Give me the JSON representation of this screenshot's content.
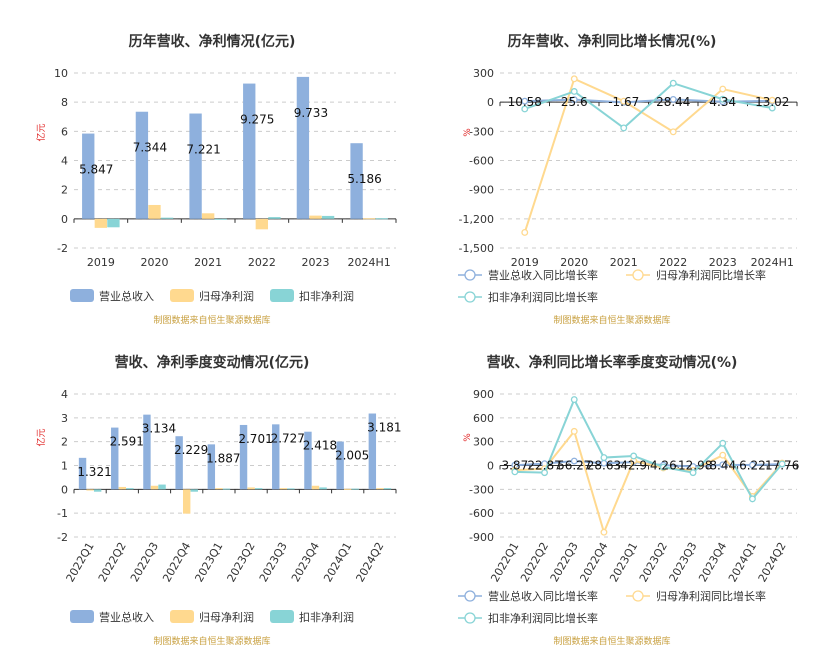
{
  "chart_data": [
    {
      "type": "bar",
      "title": "历年营收、净利情况(亿元)",
      "unit": "亿元",
      "categories": [
        "2019",
        "2020",
        "2021",
        "2022",
        "2023",
        "2024H1"
      ],
      "ylim": [
        -2,
        10
      ],
      "yticks": [
        -2,
        0,
        2,
        4,
        6,
        8,
        10
      ],
      "grid": true,
      "legend": "bottom",
      "series": [
        {
          "name": "营业总收入",
          "color": "#8eb0dd",
          "values": [
            5.847,
            7.344,
            7.221,
            9.275,
            9.733,
            5.186
          ]
        },
        {
          "name": "归母净利润",
          "color": "#ffd98f",
          "values": [
            -0.62,
            0.95,
            0.38,
            -0.72,
            0.22,
            0.04
          ]
        },
        {
          "name": "扣非净利润",
          "color": "#88d4d6",
          "values": [
            -0.58,
            0.08,
            -0.05,
            0.12,
            0.2,
            0.04
          ]
        }
      ],
      "data_labels": [
        "5.847",
        "7.344",
        "7.221",
        "9.275",
        "9.733",
        "5.186"
      ],
      "source": "制图数据来自恒生聚源数据库"
    },
    {
      "type": "line",
      "title": "历年营收、净利同比增长情况(%)",
      "unit": "%",
      "categories": [
        "2019",
        "2020",
        "2021",
        "2022",
        "2023",
        "2024H1"
      ],
      "ylim": [
        -1500,
        300
      ],
      "yticks": [
        "300",
        "0",
        "-300",
        "-600",
        "-900",
        "-1,200",
        "-1,500"
      ],
      "grid": true,
      "legend": "bottom",
      "series": [
        {
          "name": "营业总收入同比增长率",
          "color": "#8eb0dd",
          "values": [
            10.58,
            25.6,
            -1.67,
            28.44,
            4.34,
            13.02
          ]
        },
        {
          "name": "归母净利润同比增长率",
          "color": "#ffd98f",
          "values": [
            -1340,
            240,
            10,
            -305,
            135,
            20
          ]
        },
        {
          "name": "扣非净利润同比增长率",
          "color": "#88d4d6",
          "values": [
            -70,
            110,
            -265,
            195,
            30,
            -60
          ]
        }
      ],
      "data_labels": [
        "10.58",
        "25.6",
        "-1.67",
        "28.44",
        "4.34",
        "13.02"
      ],
      "source": "制图数据来自恒生聚源数据库"
    },
    {
      "type": "bar",
      "title": "营收、净利季度变动情况(亿元)",
      "unit": "亿元",
      "categories": [
        "2022Q1",
        "2022Q2",
        "2022Q3",
        "2022Q4",
        "2023Q1",
        "2023Q2",
        "2023Q3",
        "2023Q4",
        "2024Q1",
        "2024Q2"
      ],
      "ylim": [
        -2,
        4
      ],
      "yticks": [
        -2,
        -1,
        0,
        1,
        2,
        3,
        4
      ],
      "grid": true,
      "legend": "bottom",
      "series": [
        {
          "name": "营业总收入",
          "color": "#8eb0dd",
          "values": [
            1.321,
            2.591,
            3.134,
            2.229,
            1.887,
            2.701,
            2.727,
            2.418,
            2.005,
            3.181
          ]
        },
        {
          "name": "归母净利润",
          "color": "#ffd98f",
          "values": [
            -0.05,
            0.1,
            0.15,
            -1.02,
            0.05,
            0.08,
            0.05,
            0.15,
            0.02,
            0.05
          ]
        },
        {
          "name": "扣非净利润",
          "color": "#88d4d6",
          "values": [
            -0.1,
            0.05,
            0.2,
            -0.1,
            0.03,
            0.05,
            0.04,
            0.08,
            0.03,
            0.05
          ]
        }
      ],
      "data_labels": [
        "1.321",
        "2.591",
        "3.134",
        "2.229",
        "1.887",
        "2.701",
        "2.727",
        "2.418",
        "2.005",
        "3.181"
      ],
      "source": "制图数据来自恒生聚源数据库"
    },
    {
      "type": "line",
      "title": "营收、净利同比增长率季度变动情况(%)",
      "unit": "%",
      "categories": [
        "2022Q1",
        "2022Q2",
        "2022Q3",
        "2022Q4",
        "2023Q1",
        "2023Q2",
        "2023Q3",
        "2023Q4",
        "2024Q1",
        "2024Q2"
      ],
      "ylim": [
        -900,
        900
      ],
      "yticks": [
        "900",
        "600",
        "300",
        "0",
        "-300",
        "-600",
        "-900"
      ],
      "grid": true,
      "legend": "bottom",
      "series": [
        {
          "name": "营业总收入同比增长率",
          "color": "#8eb0dd",
          "values": [
            3.87,
            22.87,
            56.27,
            28.63,
            42.9,
            4.26,
            -12.98,
            8.44,
            6.22,
            17.76
          ]
        },
        {
          "name": "归母净利润同比增长率",
          "color": "#ffd98f",
          "values": [
            -60,
            -40,
            430,
            -840,
            60,
            -30,
            -60,
            130,
            -390,
            30
          ]
        },
        {
          "name": "扣非净利润同比增长率",
          "color": "#88d4d6",
          "values": [
            -80,
            -90,
            830,
            100,
            120,
            -20,
            -90,
            280,
            -420,
            20
          ]
        }
      ],
      "data_labels": [
        "3.87",
        "22.87",
        "56.27",
        "28.63",
        "42.9",
        "4.26",
        "-12.98",
        "8.44",
        "6.22",
        "17.76"
      ],
      "source": "制图数据来自恒生聚源数据库"
    }
  ]
}
